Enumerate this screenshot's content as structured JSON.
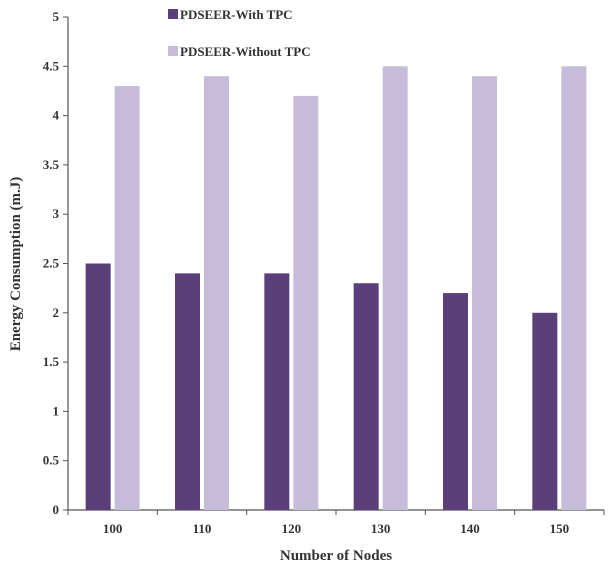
{
  "chart_data": {
    "type": "bar",
    "title": "",
    "xlabel": "Number of Nodes",
    "ylabel": "Energy Consumption (m.J)",
    "categories": [
      "100",
      "110",
      "120",
      "130",
      "140",
      "150"
    ],
    "ylim": [
      0,
      5
    ],
    "yticks": [
      "0",
      "0.5",
      "1",
      "1.5",
      "2",
      "2.5",
      "3",
      "3.5",
      "4",
      "4.5",
      "5"
    ],
    "grid": false,
    "legend_position": "top-left",
    "series": [
      {
        "name": "PDSEER-With TPC",
        "color": "#5b3f7a",
        "values": [
          2.5,
          2.4,
          2.4,
          2.3,
          2.2,
          2.0
        ]
      },
      {
        "name": "PDSEER-Without TPC",
        "color": "#c6bcd9",
        "values": [
          4.3,
          4.4,
          4.2,
          4.5,
          4.4,
          4.5
        ]
      }
    ]
  }
}
